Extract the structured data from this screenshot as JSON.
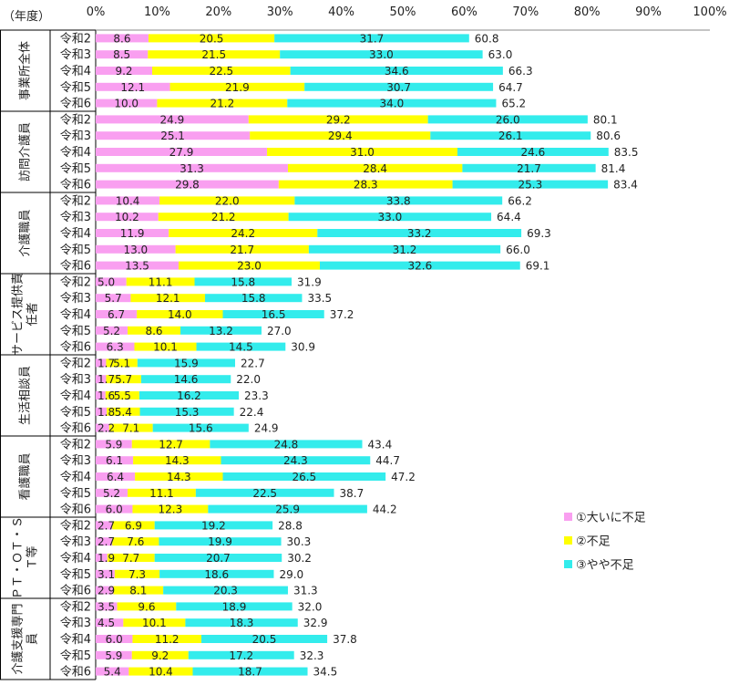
{
  "chart_data": {
    "type": "bar",
    "orientation": "horizontal",
    "stacked": true,
    "y_axis_title": "（年度）",
    "x_ticks": [
      "0%",
      "10%",
      "20%",
      "30%",
      "40%",
      "50%",
      "60%",
      "70%",
      "80%",
      "90%",
      "100%"
    ],
    "xlim": [
      0,
      100
    ],
    "legend_position": "right",
    "series": [
      {
        "name": "①大いに不足",
        "color": "#f99ff0"
      },
      {
        "name": "②不足",
        "color": "#ffff00"
      },
      {
        "name": "③やや不足",
        "color": "#33ecec"
      }
    ],
    "groups": [
      {
        "name": "事業所全体",
        "label_lines": [
          "事業所全体"
        ],
        "rows": [
          {
            "year": "令和2",
            "values": [
              8.6,
              20.5,
              31.7
            ],
            "total": 60.8
          },
          {
            "year": "令和3",
            "values": [
              8.5,
              21.5,
              33.0
            ],
            "total": 63.0
          },
          {
            "year": "令和4",
            "values": [
              9.2,
              22.5,
              34.6
            ],
            "total": 66.3
          },
          {
            "year": "令和5",
            "values": [
              12.1,
              21.9,
              30.7
            ],
            "total": 64.7
          },
          {
            "year": "令和6",
            "values": [
              10.0,
              21.2,
              34.0
            ],
            "total": 65.2
          }
        ]
      },
      {
        "name": "訪問介護員",
        "label_lines": [
          "訪問介護員"
        ],
        "rows": [
          {
            "year": "令和2",
            "values": [
              24.9,
              29.2,
              26.0
            ],
            "total": 80.1
          },
          {
            "year": "令和3",
            "values": [
              25.1,
              29.4,
              26.1
            ],
            "total": 80.6
          },
          {
            "year": "令和4",
            "values": [
              27.9,
              31.0,
              24.6
            ],
            "total": 83.5
          },
          {
            "year": "令和5",
            "values": [
              31.3,
              28.4,
              21.7
            ],
            "total": 81.4
          },
          {
            "year": "令和6",
            "values": [
              29.8,
              28.3,
              25.3
            ],
            "total": 83.4
          }
        ]
      },
      {
        "name": "介護職員",
        "label_lines": [
          "介護職員"
        ],
        "rows": [
          {
            "year": "令和2",
            "values": [
              10.4,
              22.0,
              33.8
            ],
            "total": 66.2
          },
          {
            "year": "令和3",
            "values": [
              10.2,
              21.2,
              33.0
            ],
            "total": 64.4
          },
          {
            "year": "令和4",
            "values": [
              11.9,
              24.2,
              33.2
            ],
            "total": 69.3
          },
          {
            "year": "令和5",
            "values": [
              13.0,
              21.7,
              31.2
            ],
            "total": 66.0
          },
          {
            "year": "令和6",
            "values": [
              13.5,
              23.0,
              32.6
            ],
            "total": 69.1
          }
        ]
      },
      {
        "name": "サービス提供責任者",
        "label_lines": [
          "サービス提供責",
          "任者"
        ],
        "rows": [
          {
            "year": "令和2",
            "values": [
              5.0,
              11.1,
              15.8
            ],
            "total": 31.9
          },
          {
            "year": "令和3",
            "values": [
              5.7,
              12.1,
              15.8
            ],
            "total": 33.5
          },
          {
            "year": "令和4",
            "values": [
              6.7,
              14.0,
              16.5
            ],
            "total": 37.2
          },
          {
            "year": "令和5",
            "values": [
              5.2,
              8.6,
              13.2
            ],
            "total": 27.0
          },
          {
            "year": "令和6",
            "values": [
              6.3,
              10.1,
              14.5
            ],
            "total": 30.9
          }
        ]
      },
      {
        "name": "生活相談員",
        "label_lines": [
          "生活相談員"
        ],
        "rows": [
          {
            "year": "令和2",
            "values": [
              1.7,
              5.1,
              15.9
            ],
            "total": 22.7
          },
          {
            "year": "令和3",
            "values": [
              1.7,
              5.7,
              14.6
            ],
            "total": 22.0
          },
          {
            "year": "令和4",
            "values": [
              1.6,
              5.5,
              16.2
            ],
            "total": 23.3
          },
          {
            "year": "令和5",
            "values": [
              1.8,
              5.4,
              15.3
            ],
            "total": 22.4
          },
          {
            "year": "令和6",
            "values": [
              2.2,
              7.1,
              15.6
            ],
            "total": 24.9
          }
        ]
      },
      {
        "name": "看護職員",
        "label_lines": [
          "看護職員"
        ],
        "rows": [
          {
            "year": "令和2",
            "values": [
              5.9,
              12.7,
              24.8
            ],
            "total": 43.4
          },
          {
            "year": "令和3",
            "values": [
              6.1,
              14.3,
              24.3
            ],
            "total": 44.7
          },
          {
            "year": "令和4",
            "values": [
              6.4,
              14.3,
              26.5
            ],
            "total": 47.2
          },
          {
            "year": "令和5",
            "values": [
              5.2,
              11.1,
              22.5
            ],
            "total": 38.7
          },
          {
            "year": "令和6",
            "values": [
              6.0,
              12.3,
              25.9
            ],
            "total": 44.2
          }
        ]
      },
      {
        "name": "PT・OT・ST等",
        "label_lines": [
          "ＰＴ・ＯＴ・Ｓ",
          "Ｔ等"
        ],
        "rows": [
          {
            "year": "令和2",
            "values": [
              2.7,
              6.9,
              19.2
            ],
            "total": 28.8
          },
          {
            "year": "令和3",
            "values": [
              2.7,
              7.6,
              19.9
            ],
            "total": 30.3
          },
          {
            "year": "令和4",
            "values": [
              1.9,
              7.7,
              20.7
            ],
            "total": 30.2
          },
          {
            "year": "令和5",
            "values": [
              3.1,
              7.3,
              18.6
            ],
            "total": 29.0
          },
          {
            "year": "令和6",
            "values": [
              2.9,
              8.1,
              20.3
            ],
            "total": 31.3
          }
        ]
      },
      {
        "name": "介護支援専門員",
        "label_lines": [
          "介護支援専門",
          "員"
        ],
        "rows": [
          {
            "year": "令和2",
            "values": [
              3.5,
              9.6,
              18.9
            ],
            "total": 32.0
          },
          {
            "year": "令和3",
            "values": [
              4.5,
              10.1,
              18.3
            ],
            "total": 32.9
          },
          {
            "year": "令和4",
            "values": [
              6.0,
              11.2,
              20.5
            ],
            "total": 37.8
          },
          {
            "year": "令和5",
            "values": [
              5.9,
              9.2,
              17.2
            ],
            "total": 32.3
          },
          {
            "year": "令和6",
            "values": [
              5.4,
              10.4,
              18.7
            ],
            "total": 34.5
          }
        ]
      }
    ]
  }
}
